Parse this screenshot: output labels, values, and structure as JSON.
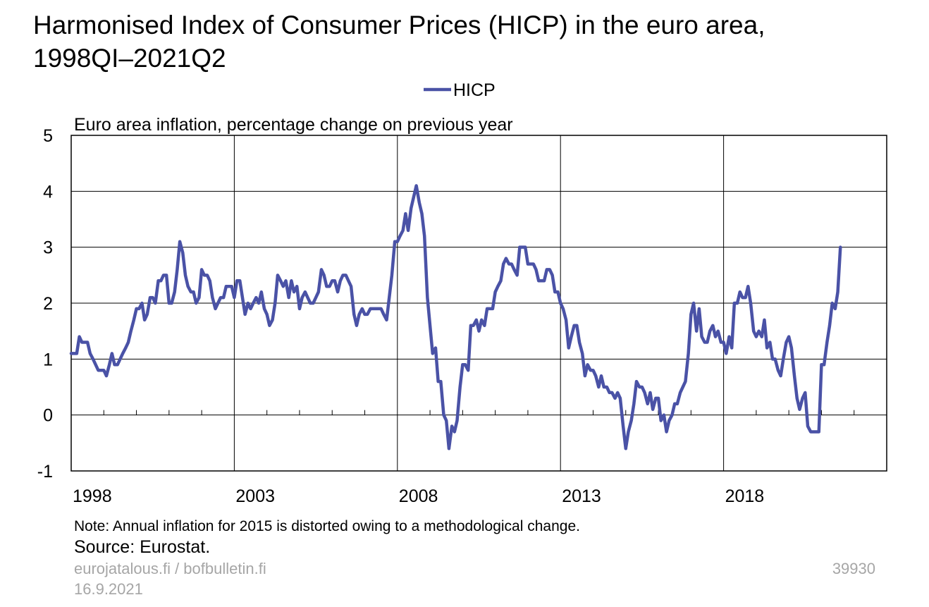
{
  "chart_data": {
    "type": "line",
    "title": [
      "Harmonised Index of Consumer Prices (HICP) in the euro area,",
      "1998QI–2021Q2"
    ],
    "y_label": "Euro area inflation, percentage change on previous year",
    "note": "Note: Annual inflation for 2015 is distorted owing to a methodological change.",
    "source": "Source: Eurostat.",
    "footer": [
      "eurojatalous.fi / bofbulletin.fi",
      "16.9.2021"
    ],
    "chart_id": "39930",
    "xlim": [
      1998,
      2023
    ],
    "xticks": [
      1998,
      2003,
      2008,
      2013,
      2018
    ],
    "xminorticks": [
      1999,
      2000,
      2001,
      2002,
      2004,
      2005,
      2006,
      2007,
      2009,
      2010,
      2011,
      2012,
      2014,
      2015,
      2016,
      2017,
      2019,
      2020,
      2021,
      2022
    ],
    "ylim": [
      -1,
      5
    ],
    "yticks": [
      -1,
      0,
      1,
      2,
      3,
      4,
      5
    ],
    "grid": true,
    "legend": "top",
    "x": [
      1998,
      1998.08,
      1998.17,
      1998.25,
      1998.33,
      1998.42,
      1998.5,
      1998.58,
      1998.67,
      1998.75,
      1998.83,
      1998.92,
      1999,
      1999.08,
      1999.17,
      1999.25,
      1999.33,
      1999.42,
      1999.5,
      1999.58,
      1999.67,
      1999.75,
      1999.83,
      1999.92,
      2000,
      2000.08,
      2000.17,
      2000.25,
      2000.33,
      2000.42,
      2000.5,
      2000.58,
      2000.67,
      2000.75,
      2000.83,
      2000.92,
      2001,
      2001.08,
      2001.17,
      2001.25,
      2001.33,
      2001.42,
      2001.5,
      2001.58,
      2001.67,
      2001.75,
      2001.83,
      2001.92,
      2002,
      2002.08,
      2002.17,
      2002.25,
      2002.33,
      2002.42,
      2002.5,
      2002.58,
      2002.67,
      2002.75,
      2002.83,
      2002.92,
      2003,
      2003.08,
      2003.17,
      2003.25,
      2003.33,
      2003.42,
      2003.5,
      2003.58,
      2003.67,
      2003.75,
      2003.83,
      2003.92,
      2004,
      2004.08,
      2004.17,
      2004.25,
      2004.33,
      2004.42,
      2004.5,
      2004.58,
      2004.67,
      2004.75,
      2004.83,
      2004.92,
      2005,
      2005.08,
      2005.17,
      2005.25,
      2005.33,
      2005.42,
      2005.5,
      2005.58,
      2005.67,
      2005.75,
      2005.83,
      2005.92,
      2006,
      2006.08,
      2006.17,
      2006.25,
      2006.33,
      2006.42,
      2006.5,
      2006.58,
      2006.67,
      2006.75,
      2006.83,
      2006.92,
      2007,
      2007.08,
      2007.17,
      2007.25,
      2007.33,
      2007.42,
      2007.5,
      2007.58,
      2007.67,
      2007.75,
      2007.83,
      2007.92,
      2008,
      2008.08,
      2008.17,
      2008.25,
      2008.33,
      2008.42,
      2008.5,
      2008.58,
      2008.67,
      2008.75,
      2008.83,
      2008.92,
      2009,
      2009.08,
      2009.17,
      2009.25,
      2009.33,
      2009.42,
      2009.5,
      2009.58,
      2009.67,
      2009.75,
      2009.83,
      2009.92,
      2010,
      2010.08,
      2010.17,
      2010.25,
      2010.33,
      2010.42,
      2010.5,
      2010.58,
      2010.67,
      2010.75,
      2010.83,
      2010.92,
      2011,
      2011.08,
      2011.17,
      2011.25,
      2011.33,
      2011.42,
      2011.5,
      2011.58,
      2011.67,
      2011.75,
      2011.83,
      2011.92,
      2012,
      2012.08,
      2012.17,
      2012.25,
      2012.33,
      2012.42,
      2012.5,
      2012.58,
      2012.67,
      2012.75,
      2012.83,
      2012.92,
      2013,
      2013.08,
      2013.17,
      2013.25,
      2013.33,
      2013.42,
      2013.5,
      2013.58,
      2013.67,
      2013.75,
      2013.83,
      2013.92,
      2014,
      2014.08,
      2014.17,
      2014.25,
      2014.33,
      2014.42,
      2014.5,
      2014.58,
      2014.67,
      2014.75,
      2014.83,
      2014.92,
      2015,
      2015.08,
      2015.17,
      2015.25,
      2015.33,
      2015.42,
      2015.5,
      2015.58,
      2015.67,
      2015.75,
      2015.83,
      2015.92,
      2016,
      2016.08,
      2016.17,
      2016.25,
      2016.33,
      2016.42,
      2016.5,
      2016.58,
      2016.67,
      2016.75,
      2016.83,
      2016.92,
      2017,
      2017.08,
      2017.17,
      2017.25,
      2017.33,
      2017.42,
      2017.5,
      2017.58,
      2017.67,
      2017.75,
      2017.83,
      2017.92,
      2018,
      2018.08,
      2018.17,
      2018.25,
      2018.33,
      2018.42,
      2018.5,
      2018.58,
      2018.67,
      2018.75,
      2018.83,
      2018.92,
      2019,
      2019.08,
      2019.17,
      2019.25,
      2019.33,
      2019.42,
      2019.5,
      2019.58,
      2019.67,
      2019.75,
      2019.83,
      2019.92,
      2020,
      2020.08,
      2020.17,
      2020.25,
      2020.33,
      2020.42,
      2020.5,
      2020.58,
      2020.67,
      2020.75,
      2020.83,
      2020.92,
      2021,
      2021.08,
      2021.17,
      2021.25,
      2021.33,
      2021.42,
      2021.5,
      2021.58
    ],
    "series": [
      {
        "name": "HICP",
        "color": "#4a52a6",
        "values": [
          1.1,
          1.1,
          1.1,
          1.4,
          1.3,
          1.3,
          1.3,
          1.1,
          1.0,
          0.9,
          0.8,
          0.8,
          0.8,
          0.7,
          0.9,
          1.1,
          0.9,
          0.9,
          1.0,
          1.1,
          1.2,
          1.3,
          1.5,
          1.7,
          1.9,
          1.9,
          2.0,
          1.7,
          1.8,
          2.1,
          2.1,
          2.0,
          2.4,
          2.4,
          2.5,
          2.5,
          2.0,
          2.0,
          2.2,
          2.6,
          3.1,
          2.9,
          2.5,
          2.3,
          2.2,
          2.2,
          2.0,
          2.1,
          2.6,
          2.5,
          2.5,
          2.4,
          2.1,
          1.9,
          2.0,
          2.1,
          2.1,
          2.3,
          2.3,
          2.3,
          2.1,
          2.4,
          2.4,
          2.1,
          1.8,
          2.0,
          1.9,
          2.0,
          2.1,
          2.0,
          2.2,
          1.9,
          1.8,
          1.6,
          1.7,
          2.0,
          2.5,
          2.4,
          2.3,
          2.4,
          2.1,
          2.4,
          2.2,
          2.3,
          1.9,
          2.1,
          2.2,
          2.1,
          2.0,
          2.0,
          2.1,
          2.2,
          2.6,
          2.5,
          2.3,
          2.3,
          2.4,
          2.4,
          2.2,
          2.4,
          2.5,
          2.5,
          2.4,
          2.3,
          1.8,
          1.6,
          1.8,
          1.9,
          1.8,
          1.8,
          1.9,
          1.9,
          1.9,
          1.9,
          1.9,
          1.8,
          1.7,
          2.1,
          2.5,
          3.1,
          3.1,
          3.2,
          3.3,
          3.6,
          3.3,
          3.7,
          3.9,
          4.1,
          3.8,
          3.6,
          3.2,
          2.1,
          1.6,
          1.1,
          1.2,
          0.6,
          0.6,
          0.0,
          -0.1,
          -0.6,
          -0.2,
          -0.3,
          -0.1,
          0.5,
          0.9,
          0.9,
          0.8,
          1.6,
          1.6,
          1.7,
          1.5,
          1.7,
          1.6,
          1.9,
          1.9,
          1.9,
          2.2,
          2.3,
          2.4,
          2.7,
          2.8,
          2.7,
          2.7,
          2.6,
          2.5,
          3.0,
          3.0,
          3.0,
          2.7,
          2.7,
          2.7,
          2.6,
          2.4,
          2.4,
          2.4,
          2.6,
          2.6,
          2.5,
          2.2,
          2.2,
          2.0,
          1.9,
          1.7,
          1.2,
          1.4,
          1.6,
          1.6,
          1.3,
          1.1,
          0.7,
          0.9,
          0.8,
          0.8,
          0.7,
          0.5,
          0.7,
          0.5,
          0.5,
          0.4,
          0.4,
          0.3,
          0.4,
          0.3,
          -0.2,
          -0.6,
          -0.3,
          -0.1,
          0.2,
          0.6,
          0.5,
          0.5,
          0.4,
          0.2,
          0.4,
          0.1,
          0.3,
          0.3,
          -0.1,
          0.0,
          -0.3,
          -0.1,
          0.0,
          0.2,
          0.2,
          0.4,
          0.5,
          0.6,
          1.1,
          1.8,
          2.0,
          1.5,
          1.9,
          1.4,
          1.3,
          1.3,
          1.5,
          1.6,
          1.4,
          1.5,
          1.3,
          1.3,
          1.1,
          1.4,
          1.2,
          2.0,
          2.0,
          2.2,
          2.1,
          2.1,
          2.3,
          2.0,
          1.5,
          1.4,
          1.5,
          1.4,
          1.7,
          1.2,
          1.3,
          1.0,
          1.0,
          0.8,
          0.7,
          1.0,
          1.3,
          1.4,
          1.2,
          0.7,
          0.3,
          0.1,
          0.3,
          0.4,
          -0.2,
          -0.3,
          -0.3,
          -0.3,
          -0.3,
          0.9,
          0.9,
          1.3,
          1.6,
          2.0,
          1.9,
          2.2,
          3.0
        ]
      }
    ]
  }
}
